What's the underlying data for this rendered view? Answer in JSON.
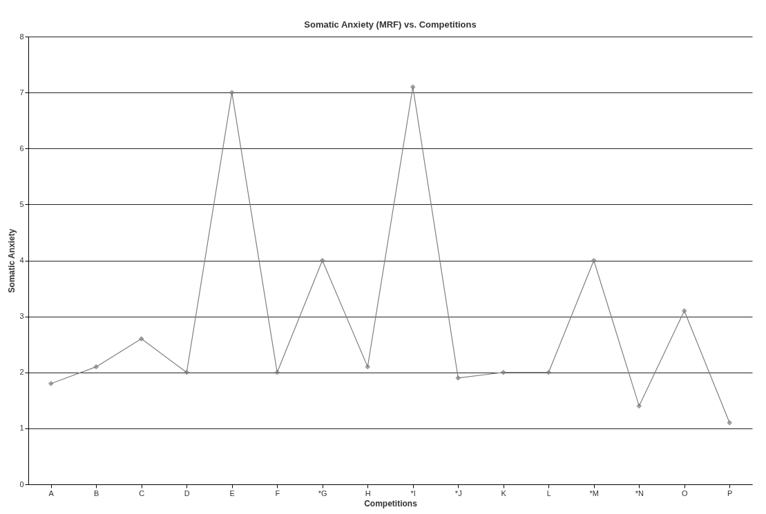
{
  "chart_data": {
    "type": "line",
    "title": "Somatic Anxiety (MRF) vs. Competitions",
    "xlabel": "Competitions",
    "ylabel": "Somatic Anxiety",
    "categories": [
      "A",
      "B",
      "C",
      "D",
      "E",
      "F",
      "*G",
      "H",
      "*I",
      "*J",
      "K",
      "L",
      "*M",
      "*N",
      "O",
      "P"
    ],
    "series": [
      {
        "color": "#7f7f7f",
        "values": [
          1.8,
          2.1,
          2.6,
          2.0,
          7.0,
          2.0,
          4.0,
          2.1,
          7.1,
          1.9,
          2.0,
          2.0,
          4.0,
          1.4,
          3.1,
          1.1
        ]
      }
    ],
    "ylim": [
      0,
      8
    ],
    "yticks": [
      0,
      1,
      2,
      3,
      4,
      5,
      6,
      7,
      8
    ],
    "grid": "y",
    "marker": "diamond",
    "line_style": "solid"
  }
}
